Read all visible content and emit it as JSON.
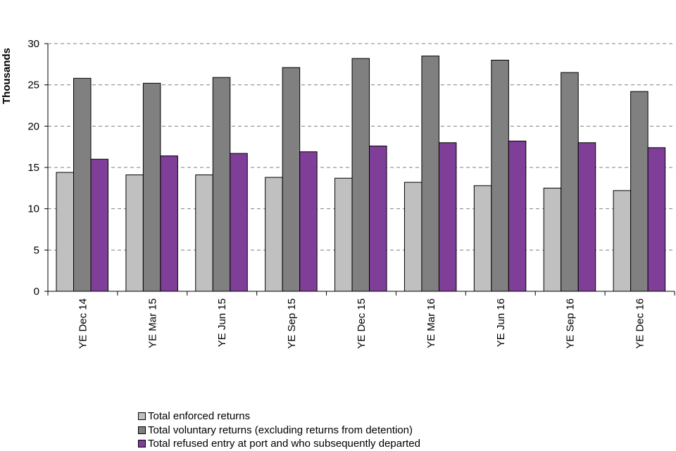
{
  "chart_data": {
    "type": "bar",
    "title": "",
    "xlabel": "",
    "ylabel": "Thousands",
    "ylim": [
      0,
      30
    ],
    "yticks": [
      0,
      5,
      10,
      15,
      20,
      25,
      30
    ],
    "ytick_labels": [
      "0",
      "5",
      "10",
      "15",
      "20",
      "25",
      "30"
    ],
    "grid": true,
    "legend_position": "bottom",
    "categories": [
      "YE Dec 14",
      "YE Mar 15",
      "YE Jun 15",
      "YE Sep 15",
      "YE Dec 15",
      "YE Mar 16",
      "YE Jun 16",
      "YE Sep 16",
      "YE Dec 16"
    ],
    "series": [
      {
        "name": "Total enforced returns",
        "color": "#c0c0c0",
        "values": [
          14.4,
          14.1,
          14.1,
          13.8,
          13.7,
          13.2,
          12.8,
          12.5,
          12.2
        ]
      },
      {
        "name": "Total voluntary returns (excluding returns from detention)",
        "color": "#808080",
        "values": [
          25.8,
          25.2,
          25.9,
          27.1,
          28.2,
          28.5,
          28.0,
          26.5,
          24.2
        ]
      },
      {
        "name": "Total refused entry at port and who subsequently departed",
        "color": "#7f3f98",
        "values": [
          16.0,
          16.4,
          16.7,
          16.9,
          17.6,
          18.0,
          18.2,
          18.0,
          17.4
        ]
      }
    ]
  }
}
